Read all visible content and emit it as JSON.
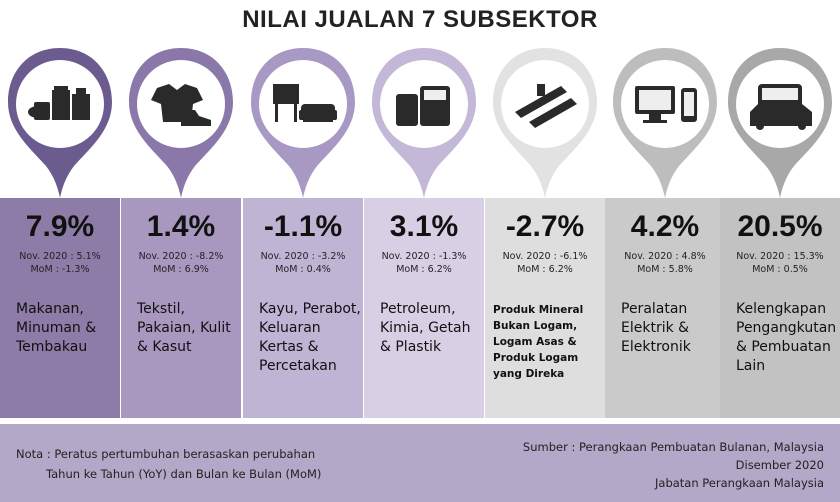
{
  "title": "NILAI JUALAN 7 SUBSEKTOR",
  "sectors": [
    {
      "pct": "7.9%",
      "yoy": "Nov. 2020 : 5.1%",
      "mom": "MoM : -1.3%",
      "desc": "Makanan, Minuman & Tembakau",
      "icon": "food-drink-tobacco-icon",
      "pin_color": "#6b5b8e",
      "panel_color": "#8d7ba8"
    },
    {
      "pct": "1.4%",
      "yoy": "Nov. 2020 : -8.2%",
      "mom": "MoM : 6.9%",
      "desc": "Tekstil, Pakaian, Kulit & Kasut",
      "icon": "clothing-shoe-icon",
      "pin_color": "#8a78aa",
      "panel_color": "#a898c0"
    },
    {
      "pct": "-1.1%",
      "yoy": "Nov. 2020 : -3.2%",
      "mom": "MoM : 0.4%",
      "desc": "Kayu, Perabot, Keluaran Kertas & Percetakan",
      "icon": "furniture-icon",
      "pin_color": "#a898c4",
      "panel_color": "#c0b4d4"
    },
    {
      "pct": "3.1%",
      "yoy": "Nov. 2020 : -1.3%",
      "mom": "MoM : 6.2%",
      "desc": "Petroleum, Kimia, Getah & Plastik",
      "icon": "oil-barrel-icon",
      "pin_color": "#c4b8d8",
      "panel_color": "#d8cfe4"
    },
    {
      "pct": "-2.7%",
      "yoy": "Nov. 2020 : -6.1%",
      "mom": "MoM : 6.2%",
      "desc": "Produk Mineral Bukan Logam, Logam Asas & Produk Logam yang Direka",
      "icon": "metal-beam-icon",
      "pin_color": "#e2e2e2",
      "panel_color": "#dedede"
    },
    {
      "pct": "4.2%",
      "yoy": "Nov. 2020 : 4.8%",
      "mom": "MoM : 5.8%",
      "desc": "Peralatan Elektrik & Elektronik",
      "icon": "computer-phone-icon",
      "pin_color": "#bdbdbd",
      "panel_color": "#cacaca"
    },
    {
      "pct": "20.5%",
      "yoy": "Nov. 2020 : 15.3%",
      "mom": "MoM : 0.5%",
      "desc": "Kelengkapan Pengangkutan & Pembuatan Lain",
      "icon": "bus-car-icon",
      "pin_color": "#a8a8a8",
      "panel_color": "#c2c2c2"
    }
  ],
  "footer": {
    "note_line1": "Nota : Peratus pertumbuhan berasaskan perubahan",
    "note_line2": "Tahun ke Tahun (YoY) dan Bulan ke Bulan (MoM)",
    "source_line1": "Sumber : Perangkaan Pembuatan Bulanan, Malaysia",
    "source_line2": "Disember 2020",
    "source_line3": "Jabatan Perangkaan Malaysia"
  }
}
